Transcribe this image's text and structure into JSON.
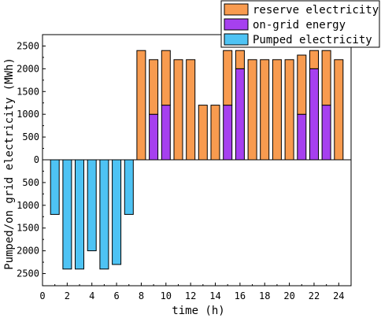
{
  "chart_data": {
    "type": "bar",
    "stacked": true,
    "title": "",
    "xlabel": "time (h)",
    "ylabel": "Pumped/on grid electricity (MWh)",
    "xlim": [
      0,
      25
    ],
    "ylim": [
      -2750,
      2750
    ],
    "x_ticks": [
      0,
      2,
      4,
      6,
      8,
      10,
      12,
      14,
      16,
      18,
      20,
      22,
      24
    ],
    "y_ticks": [
      -2500,
      -2000,
      -1500,
      -1000,
      -500,
      0,
      500,
      1000,
      1500,
      2000,
      2500
    ],
    "y_tick_labels": [
      "2500",
      "2000",
      "1500",
      "1000",
      "500",
      "0",
      "500",
      "1000",
      "1500",
      "2000",
      "2500"
    ],
    "grid": false,
    "legend_position": "top-right",
    "x": [
      1,
      2,
      3,
      4,
      5,
      6,
      7,
      8,
      9,
      10,
      11,
      12,
      13,
      14,
      15,
      16,
      17,
      18,
      19,
      20,
      21,
      22,
      23,
      24
    ],
    "series": [
      {
        "name": "reserve electricity",
        "color": "#F89B4F",
        "values": [
          0,
          0,
          0,
          0,
          0,
          0,
          0,
          2400,
          1200,
          1200,
          2200,
          2200,
          1200,
          1200,
          1200,
          400,
          2200,
          2200,
          2200,
          2200,
          1300,
          400,
          1200,
          2200
        ]
      },
      {
        "name": "on-grid energy",
        "color": "#A640EF",
        "values": [
          0,
          0,
          0,
          0,
          0,
          0,
          0,
          0,
          1000,
          1200,
          0,
          0,
          0,
          0,
          1200,
          2000,
          0,
          0,
          0,
          0,
          1000,
          2000,
          1200,
          0
        ]
      },
      {
        "name": "Pumped electricity",
        "color": "#4EC3F4",
        "values": [
          -1200,
          -2400,
          -2400,
          -2000,
          -2400,
          -2300,
          -1200,
          0,
          0,
          0,
          0,
          0,
          0,
          0,
          0,
          0,
          0,
          0,
          0,
          0,
          0,
          0,
          0,
          0
        ]
      }
    ]
  }
}
